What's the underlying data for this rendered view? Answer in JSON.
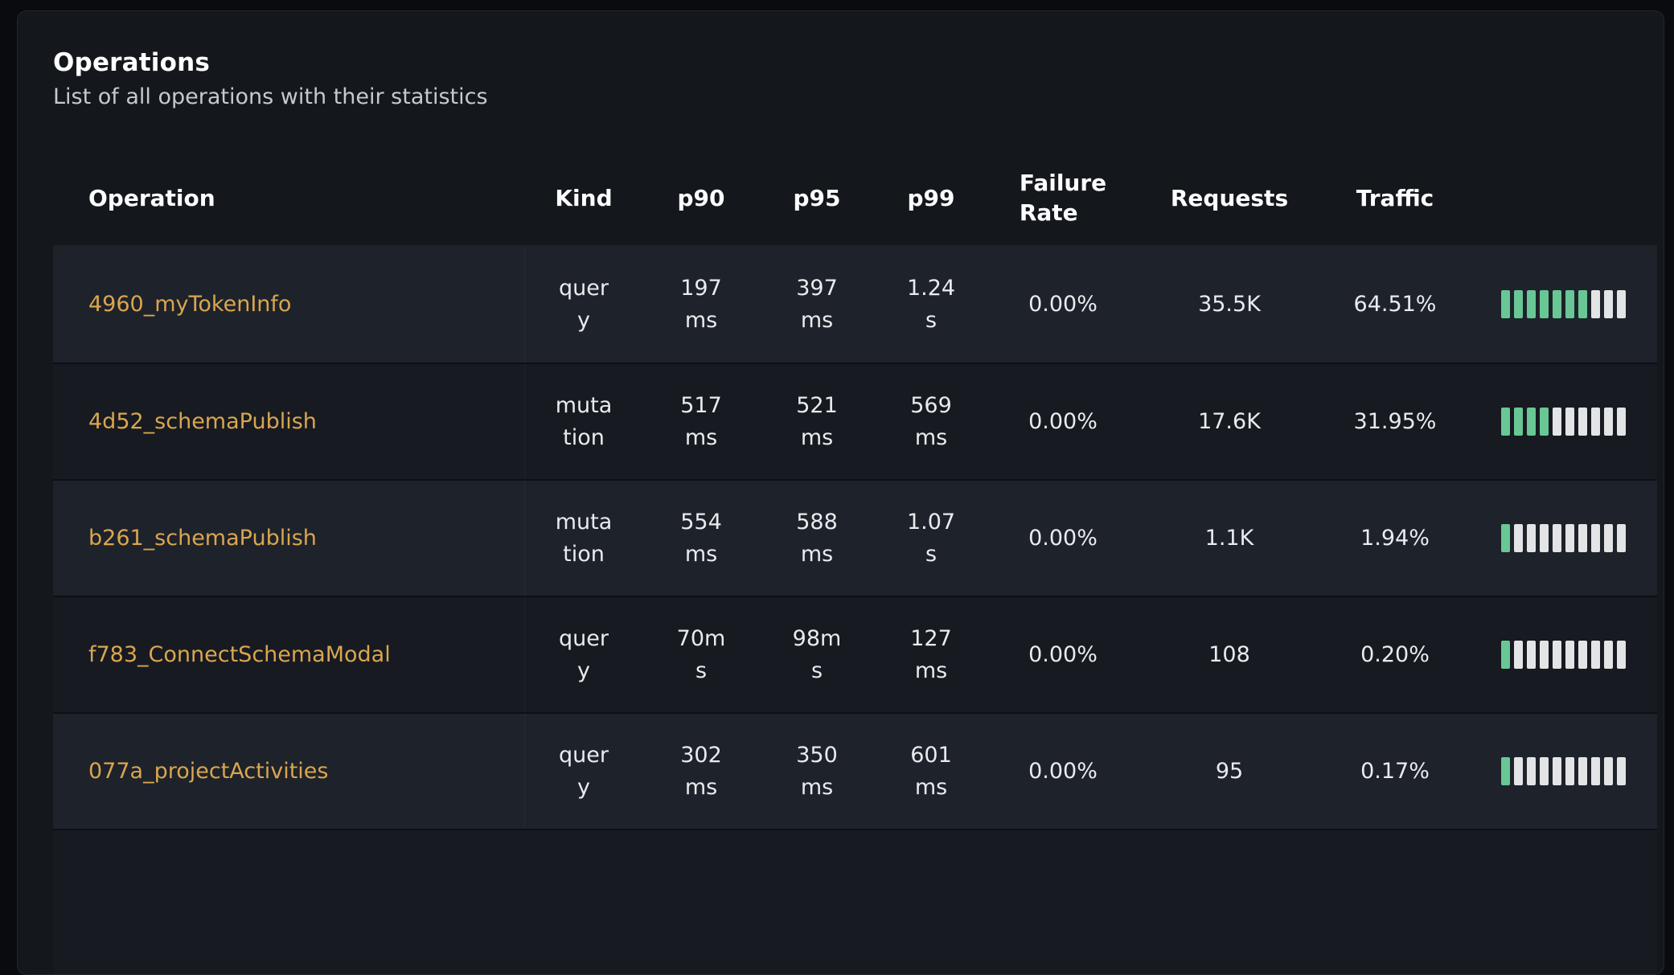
{
  "panel": {
    "title": "Operations",
    "subtitle": "List of all operations with their statistics"
  },
  "table": {
    "columns": [
      {
        "key": "operation",
        "label": "Operation"
      },
      {
        "key": "kind",
        "label": "Kind"
      },
      {
        "key": "p90",
        "label": "p90"
      },
      {
        "key": "p95",
        "label": "p95"
      },
      {
        "key": "p99",
        "label": "p99"
      },
      {
        "key": "failure_rate",
        "label": "Failure Rate"
      },
      {
        "key": "requests",
        "label": "Requests"
      },
      {
        "key": "traffic",
        "label": "Traffic"
      },
      {
        "key": "traffic_bar",
        "label": ""
      }
    ],
    "rows": [
      {
        "operation": "4960_myTokenInfo",
        "kind": "query",
        "p90": "197 ms",
        "p95": "397 ms",
        "p99": "1.24 s",
        "failure_rate": "0.00%",
        "requests": "35.5K",
        "traffic": "64.51%",
        "bar_filled": 7,
        "bar_total": 10
      },
      {
        "operation": "4d52_schemaPublish",
        "kind": "mutation",
        "p90": "517 ms",
        "p95": "521 ms",
        "p99": "569 ms",
        "failure_rate": "0.00%",
        "requests": "17.6K",
        "traffic": "31.95%",
        "bar_filled": 4,
        "bar_total": 10
      },
      {
        "operation": "b261_schemaPublish",
        "kind": "mutation",
        "p90": "554 ms",
        "p95": "588 ms",
        "p99": "1.07 s",
        "failure_rate": "0.00%",
        "requests": "1.1K",
        "traffic": "1.94%",
        "bar_filled": 1,
        "bar_total": 10
      },
      {
        "operation": "f783_ConnectSchemaModal",
        "kind": "query",
        "p90": "70ms",
        "p95": "98ms",
        "p99": "127 ms",
        "failure_rate": "0.00%",
        "requests": "108",
        "traffic": "0.20%",
        "bar_filled": 1,
        "bar_total": 10
      },
      {
        "operation": "077a_projectActivities",
        "kind": "query",
        "p90": "302 ms",
        "p95": "350 ms",
        "p99": "601 ms",
        "failure_rate": "0.00%",
        "requests": "95",
        "traffic": "0.17%",
        "bar_filled": 1,
        "bar_total": 10
      }
    ]
  },
  "colors": {
    "accent_link": "#d9a64f",
    "bar_filled": "#68c795",
    "bar_empty": "#e3e4e6",
    "row_stripe_light": "#1e222a",
    "row_stripe_dark": "#171a21",
    "card_background": "#14171c"
  }
}
